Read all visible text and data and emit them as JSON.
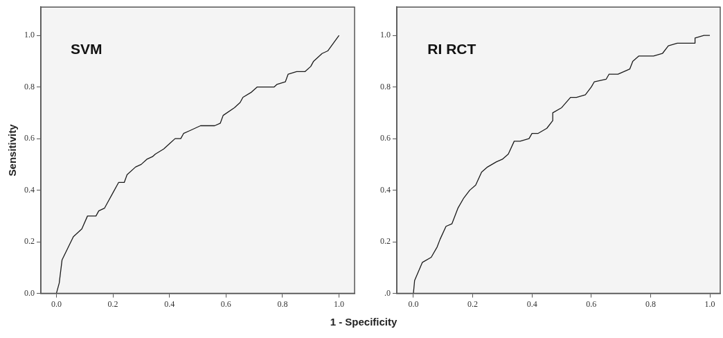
{
  "chart_data": [
    {
      "type": "line",
      "title": "SVM",
      "xlabel": "1 - Specificity",
      "ylabel": "Sensitivity",
      "color": "#1a1a1a",
      "x": [
        0,
        0.01,
        0.02,
        0.06,
        0.09,
        0.11,
        0.14,
        0.15,
        0.17,
        0.18,
        0.2,
        0.22,
        0.24,
        0.25,
        0.28,
        0.3,
        0.32,
        0.34,
        0.35,
        0.38,
        0.4,
        0.42,
        0.44,
        0.45,
        0.47,
        0.49,
        0.51,
        0.56,
        0.58,
        0.59,
        0.63,
        0.65,
        0.66,
        0.69,
        0.71,
        0.77,
        0.78,
        0.81,
        0.82,
        0.85,
        0.88,
        0.9,
        0.91,
        0.94,
        0.96,
        0.98,
        1.0
      ],
      "values": [
        0,
        0.04,
        0.13,
        0.22,
        0.25,
        0.3,
        0.3,
        0.32,
        0.33,
        0.35,
        0.39,
        0.43,
        0.43,
        0.46,
        0.49,
        0.5,
        0.52,
        0.53,
        0.54,
        0.56,
        0.58,
        0.6,
        0.6,
        0.62,
        0.63,
        0.64,
        0.65,
        0.65,
        0.66,
        0.69,
        0.72,
        0.74,
        0.76,
        0.78,
        0.8,
        0.8,
        0.81,
        0.82,
        0.85,
        0.86,
        0.86,
        0.88,
        0.9,
        0.93,
        0.94,
        0.97,
        1.0
      ],
      "xlim": [
        -0.055,
        1.055
      ],
      "ylim": [
        0,
        1.11
      ],
      "xticks": [
        {
          "value": 0,
          "label": "0.0"
        },
        {
          "value": 0.2,
          "label": "0.2"
        },
        {
          "value": 0.4,
          "label": "0.4"
        },
        {
          "value": 0.6,
          "label": "0.6"
        },
        {
          "value": 0.8,
          "label": "0.8"
        },
        {
          "value": 1,
          "label": "1.0"
        }
      ],
      "yticks": [
        {
          "value": 0,
          "label": "0.0"
        },
        {
          "value": 0.2,
          "label": "0.2"
        },
        {
          "value": 0.4,
          "label": "0.4"
        },
        {
          "value": 0.6,
          "label": "0.6"
        },
        {
          "value": 0.8,
          "label": "0.8"
        },
        {
          "value": 1,
          "label": "1.0"
        }
      ]
    },
    {
      "type": "line",
      "title": "RI RCT",
      "color": "#1a1a1a",
      "x": [
        0,
        0.004,
        0.03,
        0.06,
        0.08,
        0.09,
        0.11,
        0.13,
        0.15,
        0.17,
        0.19,
        0.21,
        0.23,
        0.25,
        0.28,
        0.3,
        0.32,
        0.34,
        0.36,
        0.39,
        0.4,
        0.42,
        0.45,
        0.47,
        0.47,
        0.5,
        0.53,
        0.55,
        0.58,
        0.6,
        0.61,
        0.65,
        0.66,
        0.69,
        0.73,
        0.74,
        0.76,
        0.81,
        0.84,
        0.86,
        0.89,
        0.92,
        0.95,
        0.95,
        0.98,
        1.0
      ],
      "values": [
        0,
        0.05,
        0.12,
        0.14,
        0.18,
        0.21,
        0.26,
        0.27,
        0.33,
        0.37,
        0.4,
        0.42,
        0.47,
        0.49,
        0.51,
        0.52,
        0.54,
        0.59,
        0.59,
        0.6,
        0.62,
        0.62,
        0.64,
        0.67,
        0.7,
        0.72,
        0.76,
        0.76,
        0.77,
        0.8,
        0.82,
        0.83,
        0.85,
        0.85,
        0.87,
        0.9,
        0.92,
        0.92,
        0.93,
        0.96,
        0.97,
        0.97,
        0.97,
        0.99,
        1.0,
        1.0
      ],
      "xlim": [
        -0.056,
        1.035
      ],
      "ylim": [
        0,
        1.11
      ],
      "xticks": [
        {
          "value": 0,
          "label": "0.0"
        },
        {
          "value": 0.2,
          "label": "0.2"
        },
        {
          "value": 0.4,
          "label": "0.4"
        },
        {
          "value": 0.6,
          "label": "0.6"
        },
        {
          "value": 0.8,
          "label": "0.8"
        },
        {
          "value": 1,
          "label": "1.0"
        }
      ],
      "yticks": [
        {
          "value": 0,
          "label": ".0"
        },
        {
          "value": 0.2,
          "label": "0.2"
        },
        {
          "value": 0.4,
          "label": "0.4"
        },
        {
          "value": 0.6,
          "label": "0.6"
        },
        {
          "value": 0.8,
          "label": "0.8"
        },
        {
          "value": 1,
          "label": "1.0"
        }
      ]
    }
  ]
}
